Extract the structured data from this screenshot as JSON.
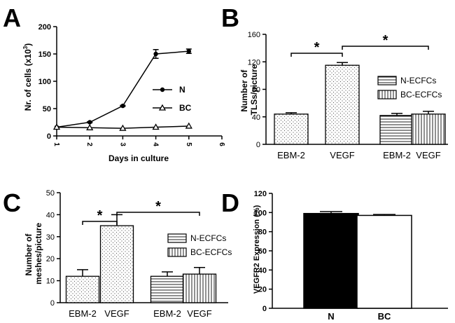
{
  "panels": {
    "A": {
      "label": "A"
    },
    "B": {
      "label": "B"
    },
    "C": {
      "label": "C"
    },
    "D": {
      "label": "D"
    }
  },
  "chart_data": [
    {
      "id": "A",
      "type": "line",
      "xlabel": "Days in culture",
      "ylabel": "Nr. of cells (x10",
      "ylabel_sup": "3",
      "ylabel_close": ")",
      "xlim": [
        1,
        6
      ],
      "ylim": [
        0,
        200
      ],
      "xticks": [
        "1",
        "2",
        "3",
        "4",
        "5",
        "6"
      ],
      "yticks": [
        "0",
        "50",
        "100",
        "150",
        "200"
      ],
      "legend": [
        {
          "name": "N",
          "marker": "circle"
        },
        {
          "name": "BC",
          "marker": "triangle"
        }
      ],
      "series": [
        {
          "name": "N",
          "x": [
            1,
            2,
            3,
            4,
            5
          ],
          "y": [
            16,
            25,
            55,
            150,
            155
          ],
          "err": [
            0,
            1,
            1,
            8,
            4
          ]
        },
        {
          "name": "BC",
          "x": [
            1,
            2,
            3,
            4,
            5
          ],
          "y": [
            16,
            15,
            14,
            16,
            18
          ],
          "err": [
            0,
            0,
            0,
            0,
            0
          ]
        }
      ]
    },
    {
      "id": "B",
      "type": "bar",
      "ylabel_lines": [
        "Number of",
        "TLSs/picture"
      ],
      "ylim": [
        0,
        160
      ],
      "yticks": [
        "0",
        "40",
        "80",
        "120",
        "160"
      ],
      "categories": [
        "EBM-2",
        "VEGF",
        "EBM-2",
        "VEGF"
      ],
      "values": [
        44,
        115,
        42,
        44
      ],
      "errors": [
        2,
        4,
        3,
        4
      ],
      "patterns": [
        "dots",
        "dots",
        "hlines",
        "vlines"
      ],
      "legend": [
        {
          "name": "N-ECFCs",
          "pattern": "hlines"
        },
        {
          "name": "BC-ECFCs",
          "pattern": "vlines"
        }
      ],
      "significance": [
        {
          "from": 0,
          "to": 1,
          "label": "*"
        },
        {
          "from": 1,
          "to": 3,
          "label": "*"
        }
      ]
    },
    {
      "id": "C",
      "type": "bar",
      "ylabel_lines": [
        "Number of",
        "meshes/picture"
      ],
      "ylim": [
        0,
        50
      ],
      "yticks": [
        "0",
        "10",
        "20",
        "30",
        "40",
        "50"
      ],
      "categories": [
        "EBM-2",
        "VEGF",
        "EBM-2",
        "VEGF"
      ],
      "values": [
        12,
        35,
        12,
        13
      ],
      "errors": [
        3,
        5,
        2,
        3
      ],
      "patterns": [
        "dots",
        "dots",
        "hlines",
        "vlines"
      ],
      "legend": [
        {
          "name": "N-ECFCs",
          "pattern": "hlines"
        },
        {
          "name": "BC-ECFCs",
          "pattern": "vlines"
        }
      ],
      "significance": [
        {
          "from": 0,
          "to": 1,
          "label": "*"
        },
        {
          "from": 1,
          "to": 3,
          "label": "*"
        }
      ]
    },
    {
      "id": "D",
      "type": "bar",
      "ylabel": "VEGFR2 Expression (%)",
      "ylim": [
        0,
        120
      ],
      "yticks": [
        "0",
        "20",
        "40",
        "60",
        "80",
        "100",
        "120"
      ],
      "categories": [
        "N",
        "BC"
      ],
      "values": [
        99,
        97
      ],
      "errors": [
        2,
        1
      ],
      "colors": [
        "#000000",
        "#ffffff"
      ]
    }
  ]
}
